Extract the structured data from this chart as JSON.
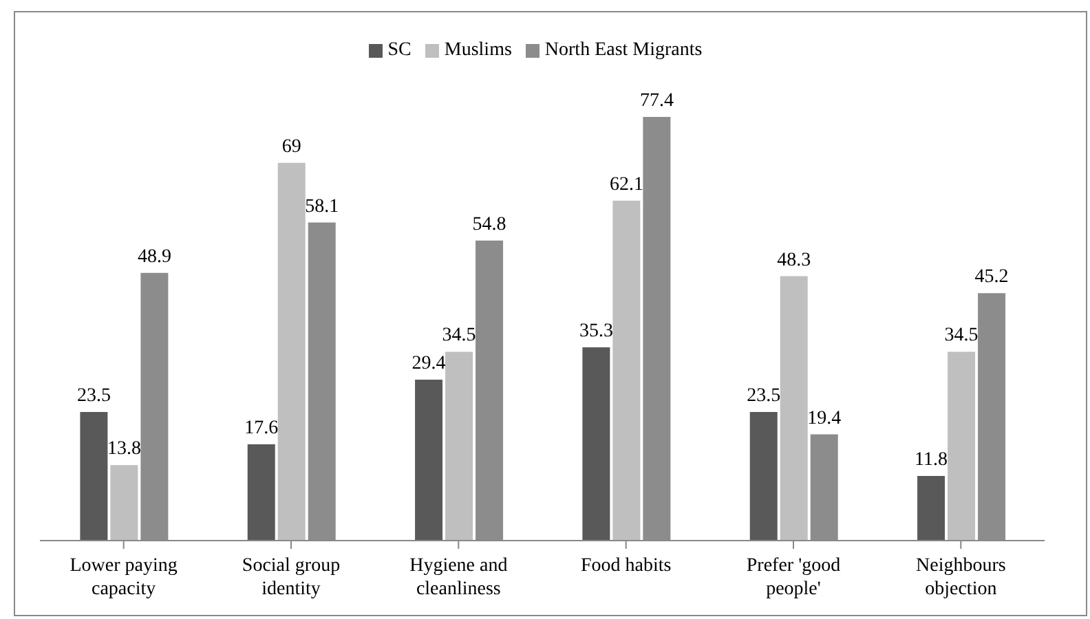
{
  "chart_data": {
    "type": "bar",
    "categories": [
      "Lower paying capacity",
      "Social group identity",
      "Hygiene and cleanliness",
      "Food habits",
      "Prefer 'good people'",
      "Neighbours objection"
    ],
    "series": [
      {
        "name": "SC",
        "color": "#595959",
        "values": [
          23.5,
          17.6,
          29.4,
          35.3,
          23.5,
          11.8
        ]
      },
      {
        "name": "Muslims",
        "color": "#bfbfbf",
        "values": [
          13.8,
          69,
          34.5,
          62.1,
          48.3,
          34.5
        ]
      },
      {
        "name": "North East Migrants",
        "color": "#8c8c8c",
        "values": [
          48.9,
          58.1,
          54.8,
          77.4,
          19.4,
          45.2
        ]
      }
    ],
    "data_labels": true,
    "legend": "top"
  }
}
